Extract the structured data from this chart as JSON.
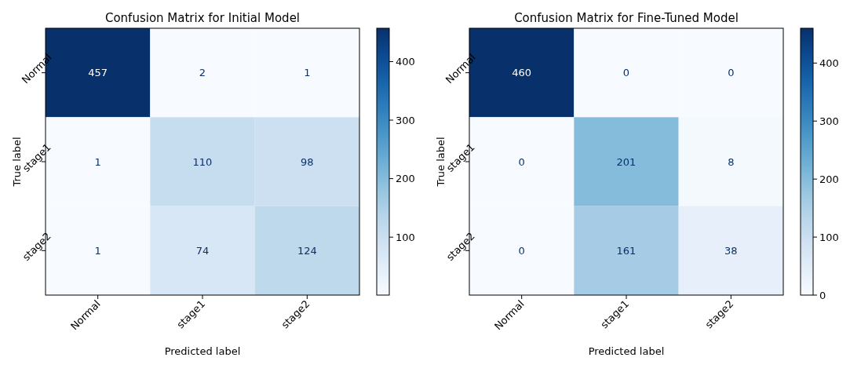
{
  "chart_data": [
    {
      "type": "heatmap",
      "title": "Confusion Matrix for Initial Model",
      "xlabel": "Predicted label",
      "ylabel": "True label",
      "categories": [
        "Normal",
        "stage1",
        "stage2"
      ],
      "y_categories": [
        "Normal",
        "stage1",
        "stage2"
      ],
      "cells": [
        [
          457,
          2,
          1
        ],
        [
          1,
          110,
          98
        ],
        [
          1,
          74,
          124
        ]
      ],
      "data_labels": true,
      "clim": [
        1,
        457
      ],
      "cticks": [
        100,
        200,
        300,
        400
      ]
    },
    {
      "type": "heatmap",
      "title": "Confusion Matrix for Fine-Tuned Model",
      "xlabel": "Predicted label",
      "ylabel": "True label",
      "categories": [
        "Normal",
        "stage1",
        "stage2"
      ],
      "y_categories": [
        "Normal",
        "stage1",
        "stage2"
      ],
      "cells": [
        [
          460,
          0,
          0
        ],
        [
          0,
          201,
          8
        ],
        [
          0,
          161,
          38
        ]
      ],
      "data_labels": true,
      "clim": [
        0,
        460
      ],
      "cticks": [
        0,
        100,
        200,
        300,
        400
      ]
    }
  ]
}
